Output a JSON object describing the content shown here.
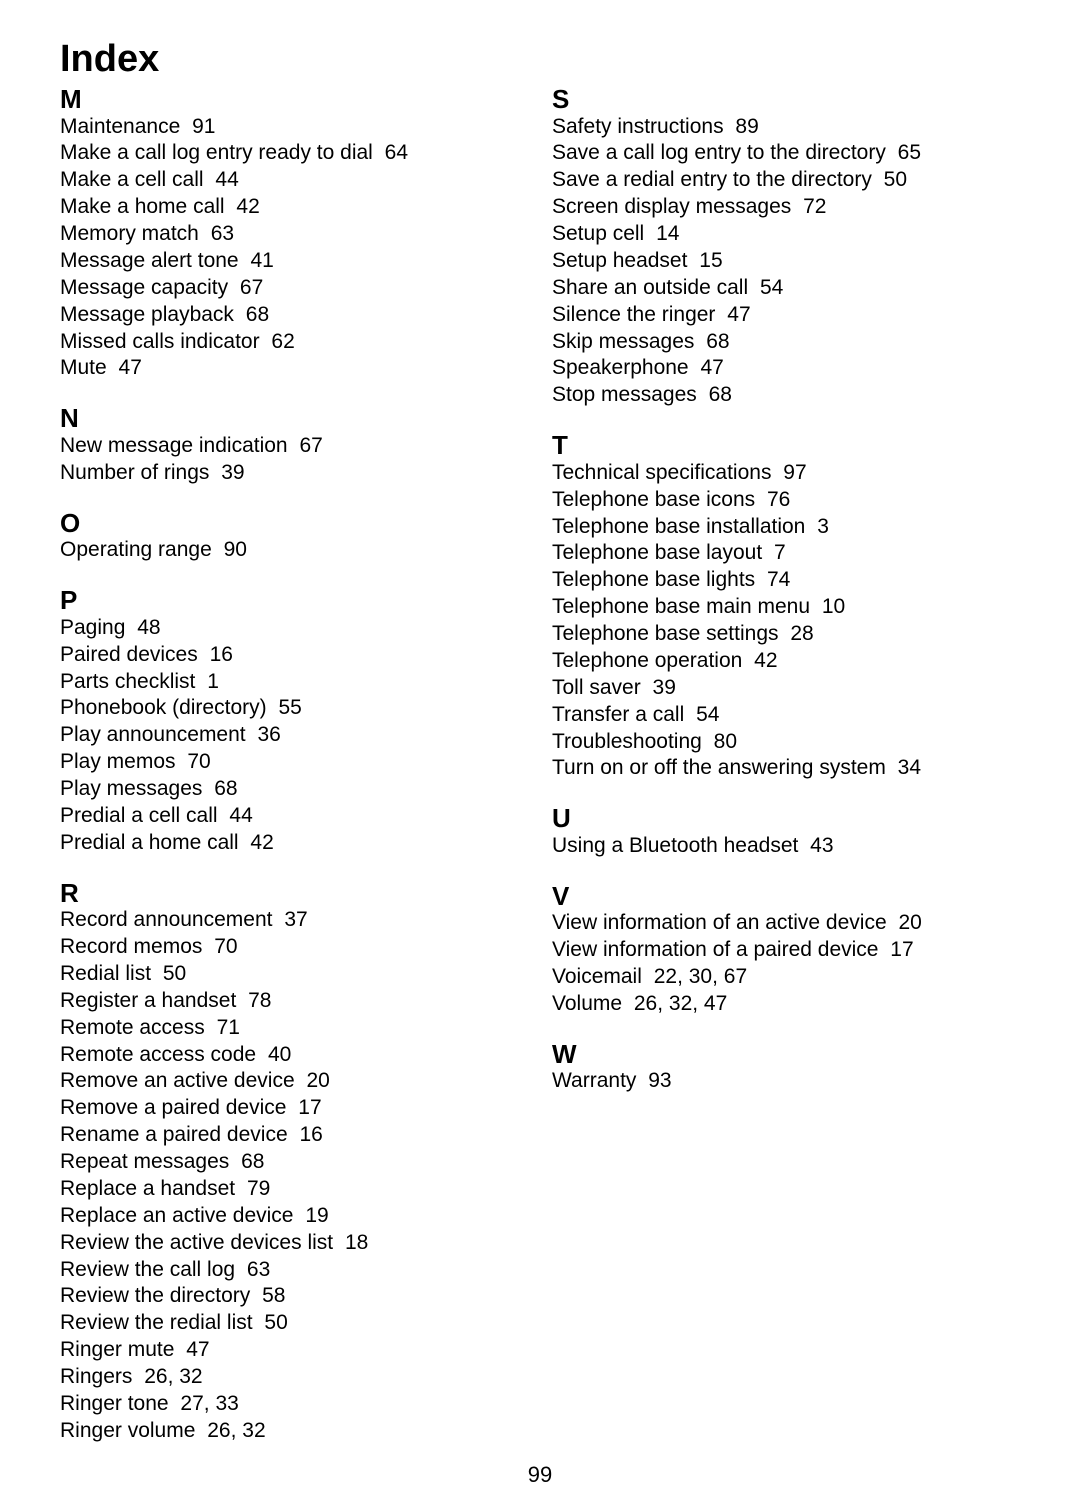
{
  "title": "Index",
  "page_number": "99",
  "columns": [
    {
      "sections": [
        {
          "letter": "M",
          "entries": [
            {
              "text": "Maintenance",
              "page": "91"
            },
            {
              "text": "Make a call log entry ready to dial",
              "page": "64"
            },
            {
              "text": "Make a cell call",
              "page": "44"
            },
            {
              "text": "Make a home call",
              "page": "42"
            },
            {
              "text": "Memory match",
              "page": "63"
            },
            {
              "text": "Message alert tone",
              "page": "41"
            },
            {
              "text": "Message capacity",
              "page": "67"
            },
            {
              "text": "Message playback",
              "page": "68"
            },
            {
              "text": "Missed calls indicator",
              "page": "62"
            },
            {
              "text": "Mute",
              "page": "47"
            }
          ]
        },
        {
          "letter": "N",
          "entries": [
            {
              "text": "New message indication",
              "page": "67"
            },
            {
              "text": "Number of rings",
              "page": "39"
            }
          ]
        },
        {
          "letter": "O",
          "entries": [
            {
              "text": "Operating range",
              "page": "90"
            }
          ]
        },
        {
          "letter": "P",
          "entries": [
            {
              "text": "Paging",
              "page": "48"
            },
            {
              "text": "Paired devices",
              "page": "16"
            },
            {
              "text": "Parts checklist",
              "page": "1"
            },
            {
              "text": "Phonebook (directory)",
              "page": "55"
            },
            {
              "text": "Play announcement",
              "page": "36"
            },
            {
              "text": "Play memos",
              "page": "70"
            },
            {
              "text": "Play messages",
              "page": "68"
            },
            {
              "text": "Predial a cell call",
              "page": "44"
            },
            {
              "text": "Predial a home call",
              "page": "42"
            }
          ]
        },
        {
          "letter": "R",
          "entries": [
            {
              "text": "Record announcement",
              "page": "37"
            },
            {
              "text": "Record memos",
              "page": "70"
            },
            {
              "text": "Redial list",
              "page": "50"
            },
            {
              "text": "Register a handset",
              "page": "78"
            },
            {
              "text": "Remote access",
              "page": "71"
            },
            {
              "text": "Remote access code",
              "page": "40"
            },
            {
              "text": "Remove an active device",
              "page": "20"
            },
            {
              "text": "Remove a paired device",
              "page": "17"
            },
            {
              "text": "Rename a paired device",
              "page": "16"
            },
            {
              "text": "Repeat messages",
              "page": "68"
            },
            {
              "text": "Replace a handset",
              "page": "79"
            },
            {
              "text": "Replace an active device",
              "page": "19"
            },
            {
              "text": "Review the active devices list",
              "page": "18"
            },
            {
              "text": "Review the call log",
              "page": "63"
            },
            {
              "text": "Review the directory",
              "page": "58"
            },
            {
              "text": "Review the redial list",
              "page": "50"
            },
            {
              "text": "Ringer mute",
              "page": "47"
            },
            {
              "text": "Ringers",
              "page": "26, 32"
            },
            {
              "text": "Ringer tone",
              "page": "27, 33"
            },
            {
              "text": "Ringer volume",
              "page": "26, 32"
            }
          ]
        }
      ]
    },
    {
      "sections": [
        {
          "letter": "S",
          "entries": [
            {
              "text": "Safety instructions",
              "page": "89"
            },
            {
              "text": "Save a call log entry to the directory",
              "page": "65"
            },
            {
              "text": "Save a redial entry to the directory",
              "page": "50"
            },
            {
              "text": "Screen display messages",
              "page": "72"
            },
            {
              "text": "Setup cell",
              "page": "14"
            },
            {
              "text": "Setup headset",
              "page": "15"
            },
            {
              "text": "Share an outside call",
              "page": "54"
            },
            {
              "text": "Silence the ringer",
              "page": "47"
            },
            {
              "text": "Skip messages",
              "page": "68"
            },
            {
              "text": "Speakerphone",
              "page": "47"
            },
            {
              "text": "Stop messages",
              "page": "68"
            }
          ]
        },
        {
          "letter": "T",
          "entries": [
            {
              "text": "Technical specifications",
              "page": "97"
            },
            {
              "text": "Telephone base icons",
              "page": "76"
            },
            {
              "text": "Telephone base installation",
              "page": "3"
            },
            {
              "text": "Telephone base layout",
              "page": "7"
            },
            {
              "text": "Telephone base lights",
              "page": "74"
            },
            {
              "text": "Telephone base main menu",
              "page": "10"
            },
            {
              "text": "Telephone base settings",
              "page": "28"
            },
            {
              "text": "Telephone operation",
              "page": "42"
            },
            {
              "text": "Toll saver",
              "page": "39"
            },
            {
              "text": "Transfer a call",
              "page": "54"
            },
            {
              "text": "Troubleshooting",
              "page": "80"
            },
            {
              "text": "Turn on or off the answering system",
              "page": "34"
            }
          ]
        },
        {
          "letter": "U",
          "entries": [
            {
              "text": "Using a Bluetooth headset",
              "page": "43"
            }
          ]
        },
        {
          "letter": "V",
          "entries": [
            {
              "text": "View information of an active device",
              "page": "20"
            },
            {
              "text": "View information of a paired device",
              "page": "17"
            },
            {
              "text": "Voicemail",
              "page": "22, 30, 67"
            },
            {
              "text": "Volume",
              "page": "26, 32, 47"
            }
          ]
        },
        {
          "letter": "W",
          "entries": [
            {
              "text": "Warranty",
              "page": "93"
            }
          ]
        }
      ]
    }
  ]
}
